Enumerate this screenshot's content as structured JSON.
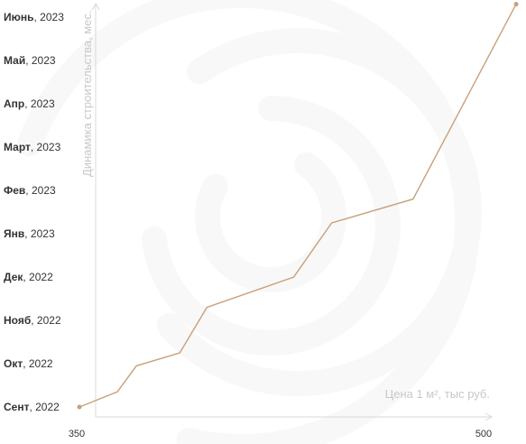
{
  "chart_data": {
    "type": "line",
    "xlabel": "Цена 1 м², тыс руб.",
    "ylabel": "Динамика строительства, мес.",
    "xlim": [
      350,
      500
    ],
    "x_ticks": [
      "350",
      "500"
    ],
    "y_categories": [
      {
        "month": "Сент",
        "year": ", 2022"
      },
      {
        "month": "Окт",
        "year": ", 2022"
      },
      {
        "month": "Нояб",
        "year": ", 2022"
      },
      {
        "month": "Дек",
        "year": ", 2022"
      },
      {
        "month": "Янв",
        "year": ", 2023"
      },
      {
        "month": "Фев",
        "year": ", 2023"
      },
      {
        "month": "Март",
        "year": ", 2023"
      },
      {
        "month": "Апр",
        "year": ", 2023"
      },
      {
        "month": "Май",
        "year": ", 2023"
      },
      {
        "month": "Июнь",
        "year": ", 2023"
      }
    ],
    "series": [
      {
        "color": "#c9a07a",
        "points": [
          {
            "x": 351,
            "y": 0.0
          },
          {
            "x": 365,
            "y": 0.35
          },
          {
            "x": 372,
            "y": 0.95
          },
          {
            "x": 388,
            "y": 1.25
          },
          {
            "x": 398,
            "y": 2.3
          },
          {
            "x": 430,
            "y": 3.0
          },
          {
            "x": 444,
            "y": 4.25
          },
          {
            "x": 474,
            "y": 4.8
          },
          {
            "x": 512,
            "y": 9.3
          }
        ]
      }
    ],
    "watermark": "swirl-logo"
  }
}
